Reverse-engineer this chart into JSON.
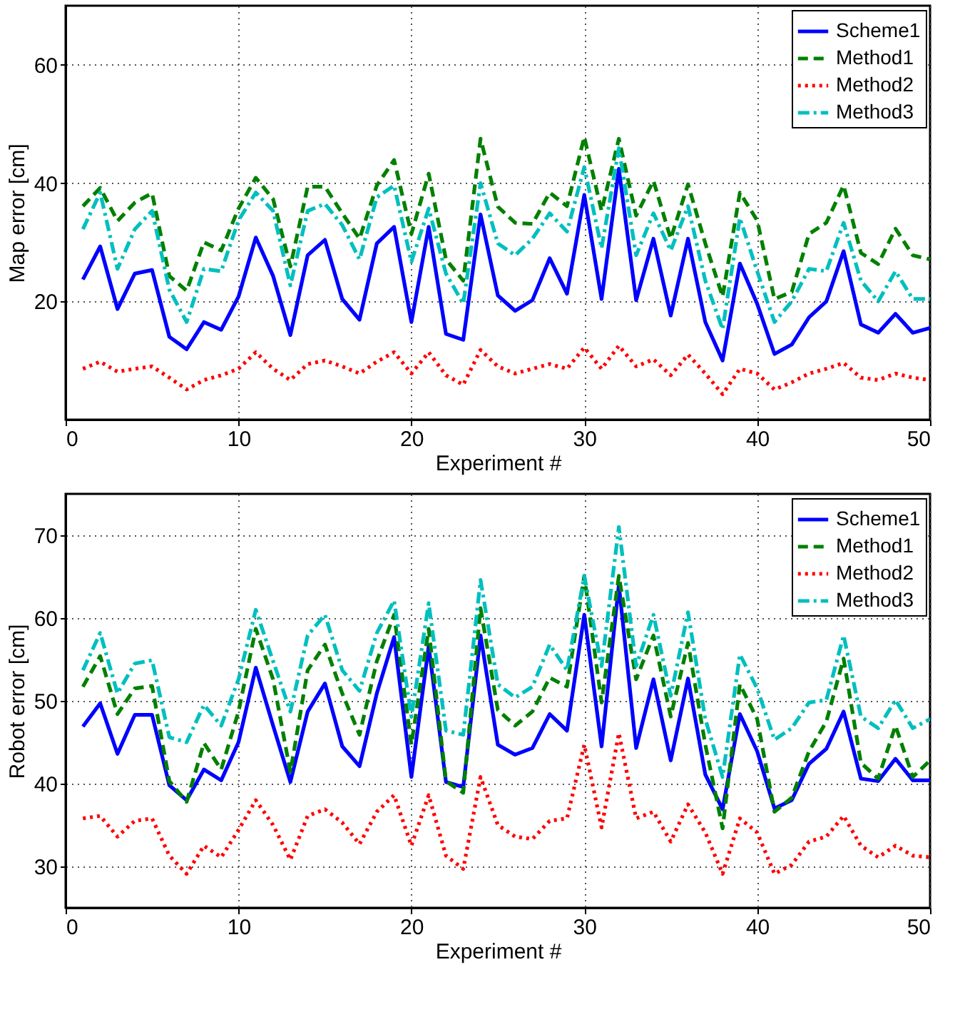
{
  "chart_data": [
    {
      "type": "line",
      "xlabel": "Experiment #",
      "ylabel": "Map error [cm]",
      "x": [
        1,
        2,
        3,
        4,
        5,
        6,
        7,
        8,
        9,
        10,
        11,
        12,
        13,
        14,
        15,
        16,
        17,
        18,
        19,
        20,
        21,
        22,
        23,
        24,
        25,
        26,
        27,
        28,
        29,
        30,
        31,
        32,
        33,
        34,
        35,
        36,
        37,
        38,
        39,
        40,
        41,
        42,
        43,
        44,
        45,
        46,
        47,
        48,
        49,
        50
      ],
      "xlim": [
        0,
        50
      ],
      "xticks": [
        0,
        10,
        20,
        30,
        40,
        50
      ],
      "ylim": [
        0,
        70
      ],
      "yticks": [
        20,
        40,
        60
      ],
      "grid": true,
      "legend": "top right",
      "series": [
        {
          "name": "Scheme1",
          "color": "#0000ff",
          "line_style": "solid",
          "values": [
            23.7,
            29.3,
            18.7,
            24.7,
            25.3,
            14,
            11.9,
            16.5,
            15.2,
            20.8,
            30.8,
            24.3,
            14.3,
            27.8,
            30.4,
            20.4,
            16.9,
            29.8,
            32.6,
            16.5,
            32.6,
            14.5,
            13.5,
            34.7,
            21,
            18.4,
            20.2,
            27.3,
            21.3,
            38,
            20.4,
            42.4,
            20.2,
            30.6,
            17.6,
            30.6,
            16.5,
            10,
            26.4,
            19.6,
            11.1,
            12.7,
            17.3,
            20,
            28.5,
            16.1,
            14.7,
            17.9,
            14.7,
            15.5
          ]
        },
        {
          "name": "Method1",
          "color": "#008000",
          "line_style": "dashed",
          "values": [
            36.1,
            39.2,
            33.6,
            36.7,
            38.3,
            24.3,
            21.8,
            30,
            28.6,
            35.7,
            40.9,
            37.3,
            25.9,
            39.4,
            39.4,
            34.9,
            30.6,
            39.6,
            43.9,
            31.4,
            41.6,
            27.1,
            23.5,
            47.5,
            36,
            33.3,
            33.1,
            38.4,
            36.1,
            47.8,
            35.3,
            47.5,
            34.5,
            40.4,
            30.6,
            39.8,
            29.8,
            20.8,
            38.4,
            33.7,
            20.4,
            21.6,
            31.4,
            33.3,
            39.6,
            28.2,
            26.3,
            32.3,
            27.8,
            27.1
          ]
        },
        {
          "name": "Method2",
          "color": "#ff0000",
          "line_style": "dotted",
          "values": [
            8.6,
            9.8,
            8.1,
            8.6,
            9,
            7.1,
            5.1,
            6.7,
            7.5,
            8.6,
            11.4,
            8.6,
            6.7,
            9.4,
            10,
            9,
            7.8,
            9.8,
            11.4,
            7.8,
            11.4,
            7.5,
            5.9,
            11.8,
            9,
            7.8,
            8.6,
            9.4,
            8.6,
            12.2,
            8.6,
            12.5,
            9,
            10.2,
            7.5,
            11,
            7.8,
            4.3,
            8.6,
            7.8,
            5.1,
            6.3,
            7.8,
            8.6,
            9.6,
            7.1,
            6.7,
            7.8,
            7.1,
            6.7
          ]
        },
        {
          "name": "Method3",
          "color": "#00bfbf",
          "line_style": "dashdot",
          "values": [
            32.2,
            38.4,
            25.5,
            32.2,
            35.3,
            22,
            16.5,
            25.5,
            25.1,
            33.7,
            38.4,
            35.3,
            22.7,
            35.3,
            36.5,
            32.9,
            27.1,
            37.6,
            39.6,
            26.7,
            35.7,
            24.7,
            19.6,
            40,
            29.8,
            27.8,
            30.6,
            34.9,
            31.8,
            42.7,
            29,
            45.9,
            27.8,
            34.9,
            28.6,
            36.1,
            23.5,
            15.3,
            34.1,
            25.1,
            16.5,
            20,
            25.5,
            25.1,
            33.3,
            23.5,
            20,
            25.1,
            20.4,
            20.4
          ]
        }
      ]
    },
    {
      "type": "line",
      "xlabel": "Experiment #",
      "ylabel": "Robot error [cm]",
      "x": [
        1,
        2,
        3,
        4,
        5,
        6,
        7,
        8,
        9,
        10,
        11,
        12,
        13,
        14,
        15,
        16,
        17,
        18,
        19,
        20,
        21,
        22,
        23,
        24,
        25,
        26,
        27,
        28,
        29,
        30,
        31,
        32,
        33,
        34,
        35,
        36,
        37,
        38,
        39,
        40,
        41,
        42,
        43,
        44,
        45,
        46,
        47,
        48,
        49,
        50
      ],
      "xlim": [
        0,
        50
      ],
      "xticks": [
        0,
        10,
        20,
        30,
        40,
        50
      ],
      "ylim": [
        25,
        75
      ],
      "yticks": [
        30,
        40,
        50,
        60,
        70
      ],
      "grid": true,
      "legend": "top right",
      "series": [
        {
          "name": "Scheme1",
          "color": "#0000ff",
          "line_style": "solid",
          "values": [
            46.9,
            49.7,
            43.6,
            48.3,
            48.3,
            39.8,
            38,
            41.7,
            40.4,
            45,
            54,
            47,
            40.2,
            48.7,
            52.1,
            44.5,
            42.1,
            50.9,
            57.7,
            40.8,
            56.6,
            40.2,
            39.6,
            57.9,
            44.7,
            43.5,
            44.3,
            48.4,
            46.4,
            60.4,
            44.5,
            64,
            44.3,
            52.6,
            42.8,
            52.7,
            41.1,
            36.9,
            48.4,
            43.9,
            37,
            38,
            42.4,
            44.2,
            48.7,
            40.6,
            40.3,
            43,
            40.4,
            40.4
          ]
        },
        {
          "name": "Method1",
          "color": "#008000",
          "line_style": "dashed",
          "values": [
            51.7,
            55.4,
            48.4,
            51.5,
            51.8,
            40.3,
            37.8,
            44.9,
            41.7,
            48.7,
            58.7,
            52.6,
            41.4,
            53.7,
            56.8,
            50.9,
            45.9,
            54.8,
            60.4,
            44.7,
            58.7,
            40.3,
            38.9,
            61.2,
            48.9,
            47,
            48.7,
            52.8,
            51.7,
            65.1,
            49.8,
            65.1,
            52.6,
            57.9,
            48.1,
            57,
            44.7,
            34.6,
            52,
            47.8,
            36.6,
            38.3,
            43.9,
            47.5,
            55.1,
            42.5,
            40.6,
            47,
            40.8,
            42.8
          ]
        },
        {
          "name": "Method2",
          "color": "#ff0000",
          "line_style": "dotted",
          "values": [
            35.8,
            36.1,
            33.6,
            35.5,
            35.8,
            31.3,
            29.1,
            32.5,
            31.1,
            34.4,
            38,
            35,
            30.8,
            36.1,
            36.9,
            35.3,
            32.7,
            36.6,
            38.6,
            32.5,
            38.6,
            31.3,
            29.7,
            40.8,
            35,
            33.6,
            33.3,
            35.5,
            35.8,
            44.7,
            34.7,
            46.1,
            35.8,
            36.6,
            33,
            37.5,
            34.1,
            29.1,
            35.8,
            34.1,
            29.1,
            30.2,
            33,
            33.6,
            36.1,
            32.5,
            31.1,
            32.5,
            31.3,
            31.1
          ]
        },
        {
          "name": "Method3",
          "color": "#00bfbf",
          "line_style": "dashdot",
          "values": [
            53.7,
            58.2,
            50.9,
            54.5,
            54.9,
            45.6,
            45,
            49.5,
            47,
            52.6,
            61,
            54.8,
            48.7,
            57.9,
            60.4,
            53.7,
            51.2,
            58.2,
            62.1,
            48.1,
            61.8,
            46.4,
            45.9,
            64.6,
            52,
            50.4,
            51.7,
            56.8,
            53.7,
            65.1,
            54.2,
            71,
            54.2,
            60.4,
            50.6,
            60.7,
            47.8,
            40.8,
            55.6,
            51.5,
            45.3,
            46.7,
            49.8,
            50.1,
            57.9,
            48.1,
            46.7,
            50.1,
            46.7,
            47.8
          ]
        }
      ]
    }
  ]
}
